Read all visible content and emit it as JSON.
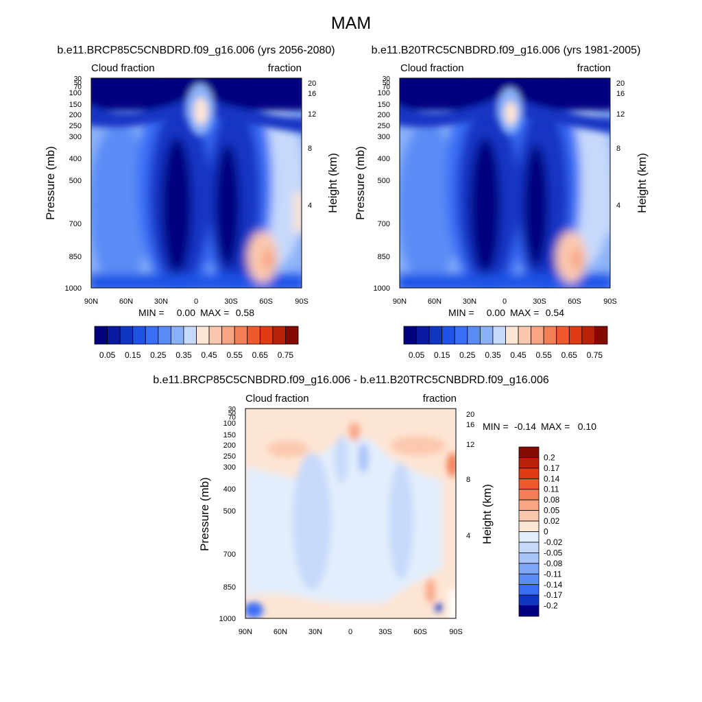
{
  "figure": {
    "title": "MAM",
    "panel_variable": "Cloud fraction",
    "panel_units": "fraction",
    "y_label_left": "Pressure (mb)",
    "y_label_right": "Height (km)",
    "min_label": "MIN =",
    "max_label": "MAX ="
  },
  "chart_data": [
    {
      "type": "heatmap",
      "title": "b.e11.BRCP85C5CNBDRD.f09_g16.006 (yrs 2056-2080)",
      "left_label": "Cloud fraction",
      "right_label": "fraction",
      "x_ticks": [
        "90N",
        "60N",
        "30N",
        "0",
        "30S",
        "60S",
        "90S"
      ],
      "x_range": [
        90,
        -90
      ],
      "y_ticks_left": [
        "30",
        "50",
        "70",
        "100",
        "150",
        "200",
        "250",
        "300",
        "400",
        "500",
        "700",
        "850",
        "1000"
      ],
      "y_ticks_right": [
        "20",
        "16",
        "12",
        "8",
        "4"
      ],
      "y_range_mb": [
        30,
        1000
      ],
      "min": "0.00",
      "max": "0.58",
      "colorbar": {
        "orientation": "horizontal",
        "labels": [
          "0.05",
          "0.15",
          "0.25",
          "0.35",
          "0.45",
          "0.55",
          "0.65",
          "0.75"
        ],
        "levels": [
          0.05,
          0.1,
          0.15,
          0.2,
          0.25,
          0.3,
          0.35,
          0.4,
          0.45,
          0.5,
          0.55,
          0.6,
          0.65,
          0.7,
          0.75
        ]
      }
    },
    {
      "type": "heatmap",
      "title": "b.e11.B20TRC5CNBDRD.f09_g16.006 (yrs 1981-2005)",
      "left_label": "Cloud fraction",
      "right_label": "fraction",
      "x_ticks": [
        "90N",
        "60N",
        "30N",
        "0",
        "30S",
        "60S",
        "90S"
      ],
      "x_range": [
        90,
        -90
      ],
      "y_ticks_left": [
        "30",
        "50",
        "70",
        "100",
        "150",
        "200",
        "250",
        "300",
        "400",
        "500",
        "700",
        "850",
        "1000"
      ],
      "y_ticks_right": [
        "20",
        "16",
        "12",
        "8",
        "4"
      ],
      "y_range_mb": [
        30,
        1000
      ],
      "min": "0.00",
      "max": "0.54",
      "colorbar": {
        "orientation": "horizontal",
        "labels": [
          "0.05",
          "0.15",
          "0.25",
          "0.35",
          "0.45",
          "0.55",
          "0.65",
          "0.75"
        ],
        "levels": [
          0.05,
          0.1,
          0.15,
          0.2,
          0.25,
          0.3,
          0.35,
          0.4,
          0.45,
          0.5,
          0.55,
          0.6,
          0.65,
          0.7,
          0.75
        ]
      }
    },
    {
      "type": "heatmap",
      "title": "b.e11.BRCP85C5CNBDRD.f09_g16.006 - b.e11.B20TRC5CNBDRD.f09_g16.006",
      "left_label": "Cloud fraction",
      "right_label": "fraction",
      "x_ticks": [
        "90N",
        "60N",
        "30N",
        "0",
        "30S",
        "60S",
        "90S"
      ],
      "x_range": [
        90,
        -90
      ],
      "y_ticks_left": [
        "30",
        "50",
        "70",
        "100",
        "150",
        "200",
        "250",
        "300",
        "400",
        "500",
        "700",
        "850",
        "1000"
      ],
      "y_ticks_right": [
        "20",
        "16",
        "12",
        "8",
        "4"
      ],
      "y_range_mb": [
        30,
        1000
      ],
      "min": "-0.14",
      "max": "0.10",
      "colorbar": {
        "orientation": "vertical",
        "labels": [
          "0.2",
          "0.17",
          "0.14",
          "0.11",
          "0.08",
          "0.05",
          "0.02",
          "0",
          "-0.02",
          "-0.05",
          "-0.08",
          "-0.11",
          "-0.14",
          "-0.17",
          "-0.2"
        ],
        "levels": [
          0.2,
          0.17,
          0.14,
          0.11,
          0.08,
          0.05,
          0.02,
          0,
          -0.02,
          -0.05,
          -0.08,
          -0.11,
          -0.14,
          -0.17,
          -0.2
        ]
      }
    }
  ],
  "colors": {
    "abs_palette": [
      "#00007f",
      "#0a1aa0",
      "#1236c4",
      "#1f52e6",
      "#3a6ef6",
      "#5a8cf6",
      "#8bb1f8",
      "#c6d9fb",
      "#fde5d4",
      "#fbc8ae",
      "#f8a583",
      "#f47e56",
      "#ee5a2e",
      "#e03b12",
      "#bb2108",
      "#850a00"
    ],
    "diff_palette": [
      "#850a00",
      "#bb2108",
      "#e03b12",
      "#ee5a2e",
      "#f47e56",
      "#f8a583",
      "#fbc8ae",
      "#fde5d4",
      "#e2eefc",
      "#c6d9fb",
      "#a8c4f9",
      "#7fa5f6",
      "#5a8cf6",
      "#3a6ef6",
      "#1236c4",
      "#00007f"
    ]
  }
}
